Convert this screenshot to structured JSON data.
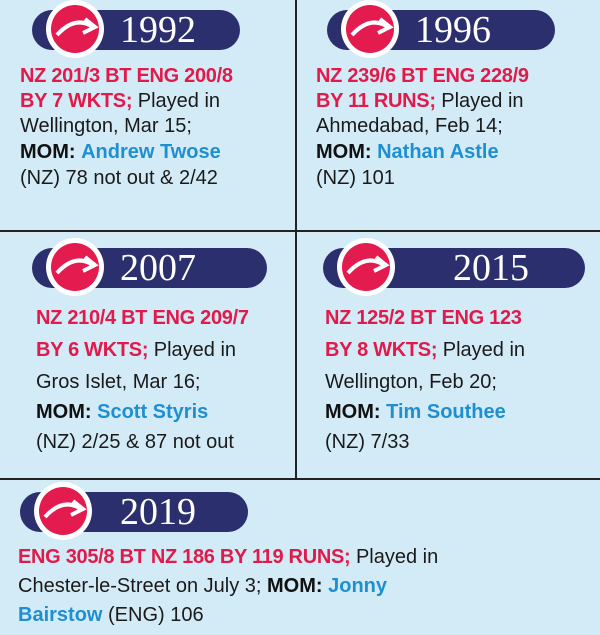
{
  "colors": {
    "background": "#d3ebf7",
    "pill": "#2b2f6d",
    "result_red": "#e01a4a",
    "mom_blue": "#1e8fd0"
  },
  "cards": [
    {
      "year": "1992",
      "result": "NZ 201/3 BT ENG 200/8",
      "margin": "BY 7 WKTS;",
      "venue_lead": " Played in",
      "venue": "Wellington, Mar 15;",
      "mom_label": "MOM:",
      "mom_name": "Andrew Twose",
      "mom_stats": "(NZ) 78 not out & 2/42"
    },
    {
      "year": "1996",
      "result": "NZ 239/6 BT ENG 228/9",
      "margin": "BY 11 RUNS;",
      "venue_lead": " Played in",
      "venue": "Ahmedabad, Feb 14;",
      "mom_label": "MOM:",
      "mom_name": "Nathan Astle",
      "mom_stats": "(NZ) 101"
    },
    {
      "year": "2007",
      "result": "NZ 210/4 BT ENG 209/7",
      "margin": "BY 6 WKTS;",
      "venue_lead": " Played in",
      "venue": "Gros Islet, Mar 16;",
      "mom_label": "MOM:",
      "mom_name": "Scott Styris",
      "mom_stats": "(NZ) 2/25 & 87 not out"
    },
    {
      "year": "2015",
      "result": "NZ 125/2 BT ENG 123",
      "margin": "BY 8 WKTS;",
      "venue_lead": " Played in",
      "venue": "Wellington, Feb 20;",
      "mom_label": "MOM:",
      "mom_name": "Tim Southee",
      "mom_stats": "(NZ) 7/33"
    },
    {
      "year": "2019",
      "result": "ENG 305/8 BT NZ 186 BY 119 RUNS;",
      "venue_lead": " Played in",
      "venue": "Chester-le-Street on July 3;",
      "mom_label": "MOM:",
      "mom_name_1": "Jonny",
      "mom_name_2": "Bairstow",
      "mom_stats": " (ENG) 106"
    }
  ]
}
